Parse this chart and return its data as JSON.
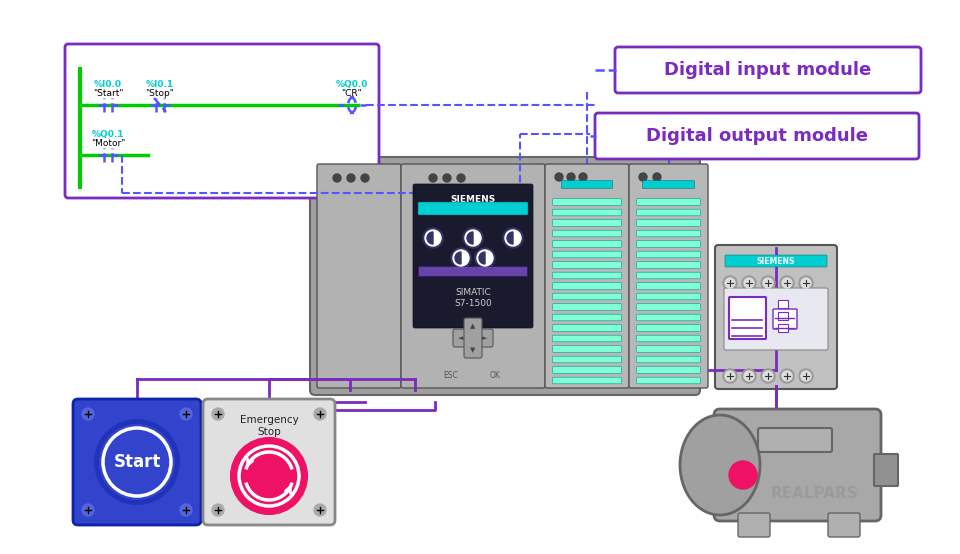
{
  "bg_color": "#ffffff",
  "purple": "#7B2BBE",
  "purple_wire": "#7B2BBE",
  "cyan_text": "#00CED1",
  "green_line": "#00CC00",
  "blue_dashed": "#5555FF",
  "gray_plc": "#A8A8A8",
  "gray_dark": "#777777",
  "gray_cpu": "#B0B0B0",
  "gray_module": "#B8B8B8",
  "teal_strip": "#7FFFD4",
  "teal_bar": "#00CED1",
  "dark_cpu_bg": "#222233",
  "blue_btn_face": "#3344CC",
  "red_estop": "#EE1166",
  "label_input": "Digital input module",
  "label_output": "Digital output module",
  "realpars_text": "REALPARS",
  "start_text": "Start",
  "estop_line1": "Emergency",
  "estop_line2": "Stop"
}
